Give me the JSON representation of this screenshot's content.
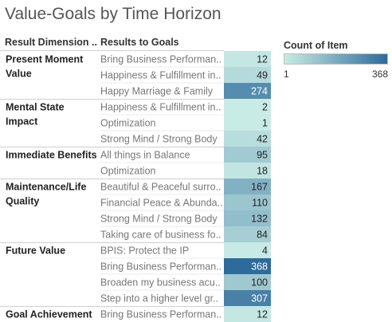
{
  "chart_data": {
    "type": "heatmap",
    "title": "Value-Goals by Time Horizon",
    "column_headers": [
      "Result Dimension ..",
      "Results to Goals"
    ],
    "color_legend": {
      "title": "Count of Item",
      "min_label": "1",
      "max_label": "368",
      "min": 1,
      "max": 368,
      "color_low": "#c9ebe5",
      "color_high": "#2e6b9b"
    },
    "groups": [
      {
        "dimension": [
          "Present Moment",
          "Value"
        ],
        "rows": [
          {
            "goal": "Bring Business Performan..",
            "value": 12
          },
          {
            "goal": "Happiness & Fulfillment in..",
            "value": 49
          },
          {
            "goal": "Happy Marriage & Family",
            "value": 274
          }
        ]
      },
      {
        "dimension": [
          "Mental State",
          "Impact"
        ],
        "rows": [
          {
            "goal": "Happiness & Fulfillment in..",
            "value": 2
          },
          {
            "goal": "Optimization",
            "value": 1
          },
          {
            "goal": "Strong Mind / Strong Body",
            "value": 42
          }
        ]
      },
      {
        "dimension": [
          "Immediate Benefits"
        ],
        "rows": [
          {
            "goal": "All things in Balance",
            "value": 95
          },
          {
            "goal": "Optimization",
            "value": 18
          }
        ]
      },
      {
        "dimension": [
          "Maintenance/Life",
          "Quality"
        ],
        "rows": [
          {
            "goal": "Beautiful & Peaceful surro..",
            "value": 167
          },
          {
            "goal": "Financial Peace & Abunda..",
            "value": 110
          },
          {
            "goal": "Strong Mind / Strong Body",
            "value": 132
          },
          {
            "goal": "Taking care of business fo..",
            "value": 84
          }
        ]
      },
      {
        "dimension": [
          "Future Value"
        ],
        "rows": [
          {
            "goal": "BPIS: Protect the IP",
            "value": 4
          },
          {
            "goal": "Bring Business Performan..",
            "value": 368
          },
          {
            "goal": "Broaden my business acu..",
            "value": 100
          },
          {
            "goal": "Step into a higher level gr..",
            "value": 307
          }
        ]
      },
      {
        "dimension": [
          "Goal Achievement"
        ],
        "rows": [
          {
            "goal": "Bring Business Performan..",
            "value": 12
          }
        ]
      }
    ]
  }
}
